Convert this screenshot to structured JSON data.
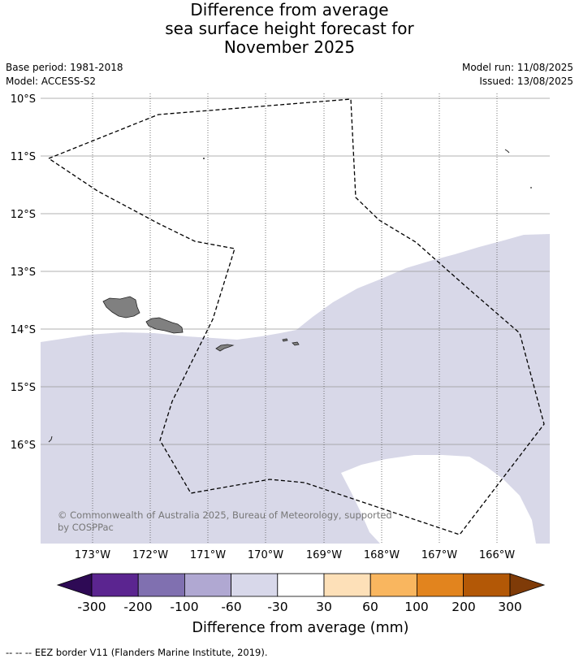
{
  "title": {
    "line1": "Difference from average",
    "line2": "sea surface height forecast for",
    "line3": "November 2025"
  },
  "meta": {
    "base_period": "Base period: 1981-2018",
    "model": "Model: ACCESS-S2",
    "model_run": "Model run: 11/08/2025",
    "issued": "Issued: 13/08/2025"
  },
  "map": {
    "lat_labels": [
      "10°S",
      "11°S",
      "12°S",
      "13°S",
      "14°S",
      "15°S",
      "16°S"
    ],
    "lon_labels": [
      "173°W",
      "172°W",
      "171°W",
      "170°W",
      "169°W",
      "168°W",
      "167°W",
      "166°W"
    ],
    "copyright": "© Commonwealth of Australia 2025, Bureau of Meteorology, supported",
    "copyright2": "by COSPPac",
    "colors": {
      "anomaly_minus60_to_minus30": "#d8d8e8",
      "land": "#808080",
      "eez_line": "#000000",
      "grid": "#888888"
    }
  },
  "colorbar": {
    "ticks": [
      "-300",
      "-200",
      "-100",
      "-60",
      "-30",
      "30",
      "60",
      "100",
      "200",
      "300"
    ],
    "colors": [
      "#2e0a55",
      "#5b2590",
      "#8070b0",
      "#b0a8d2",
      "#d8d8ea",
      "#ffffff",
      "#fde0b8",
      "#f9b65f",
      "#e2841e",
      "#b35806",
      "#7f3b08"
    ],
    "label": "Difference from average (mm)"
  },
  "footer": {
    "eez_legend": "--  --  -- EEZ border V11 (Flanders Marine Institute, 2019)."
  }
}
